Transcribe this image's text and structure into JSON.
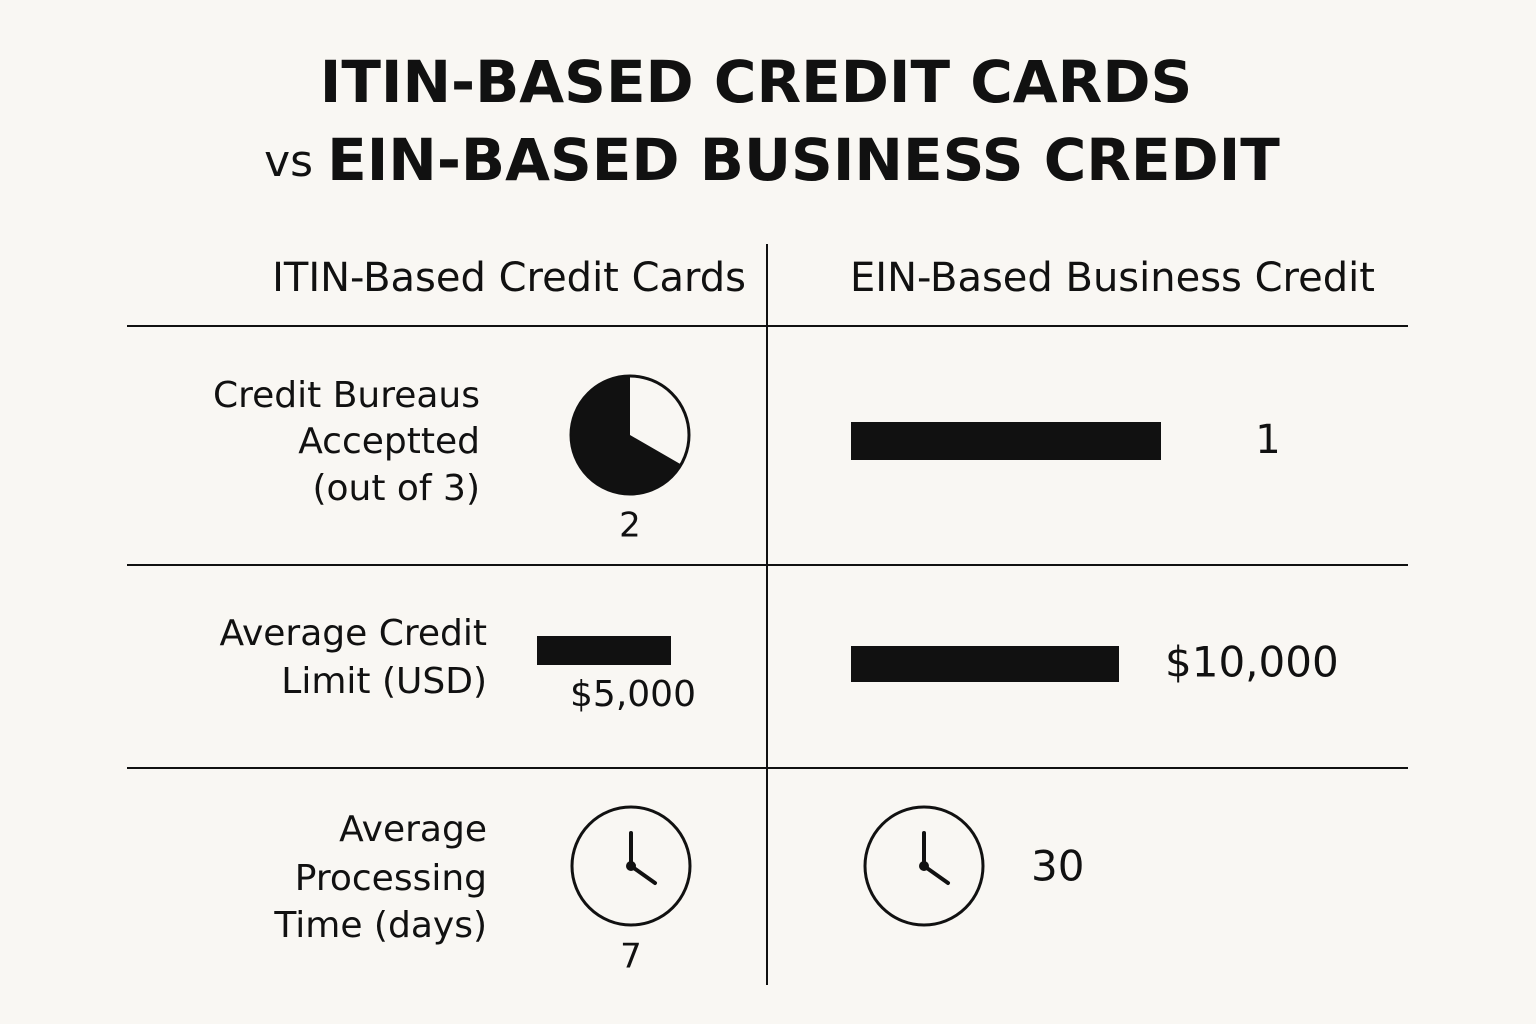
{
  "title": {
    "line1": "ITIN-BASED CREDIT CARDS",
    "line2_prefix": "vs",
    "line2": "EIN-BASED BUSINESS CREDIT"
  },
  "columns": [
    "ITIN-Based Credit Cards",
    "EIN-Based Business Credit"
  ],
  "rows": [
    {
      "label": [
        [
          "Credit Bureaus"
        ],
        [
          "Acceptted"
        ],
        [
          "(out of ",
          3,
          ")"
        ]
      ],
      "itin": 2,
      "ein": 1
    },
    {
      "label": [
        [
          "Average Credit"
        ],
        [
          "Limit (USD)"
        ]
      ],
      "itin": 5000,
      "itin_label": "$5,000",
      "ein": 10000,
      "ein_label": "$10,000"
    },
    {
      "label": [
        [
          "Average"
        ],
        [
          "Processing"
        ],
        [
          "Time (days)"
        ]
      ],
      "itin": 7,
      "ein": 30
    }
  ]
}
